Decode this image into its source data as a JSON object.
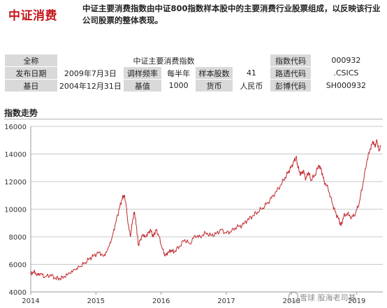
{
  "header": {
    "title": "中证消费",
    "description": "中证主要消费指数由中证800指数样本股中的主要消费行业股票组成，以反映该行业公司股票的整体表现。"
  },
  "info_table": {
    "row1": {
      "quanchen_label": "全称",
      "quanchen_value": "中证主要消费指数",
      "code_label": "指数代码",
      "code_value": "000932"
    },
    "row2": {
      "date_label": "发布日期",
      "date_value": "2009年7月3日",
      "freq_label": "调样频率",
      "freq_value": "每半年",
      "count_label": "样本股数",
      "count_value": "41",
      "reuters_label": "路透代码",
      "reuters_value": ".CSICS"
    },
    "row3": {
      "base_date_label": "基日",
      "base_date_value": "2004年12月31日",
      "base_value_label": "基值",
      "base_value_value": "1000",
      "currency_label": "货币",
      "currency_value": "人民币",
      "bloomberg_label": "彭博代码",
      "bloomberg_value": "SH000932"
    }
  },
  "section": {
    "title": "指数走势"
  },
  "watermark": {
    "text": "雪球 股海老司基"
  },
  "colors": {
    "line": "#c0282e",
    "brand": "#c4161c",
    "grid": "#c8c8c8",
    "label_bg": "#d9d9d9"
  },
  "chart_data": {
    "type": "line",
    "title": "",
    "xlabel": "",
    "ylabel": "",
    "x_ticks": [
      "2014",
      "2015",
      "2016",
      "2017",
      "2018",
      "2019"
    ],
    "y_ticks": [
      4000,
      6000,
      8000,
      10000,
      12000,
      14000,
      16000
    ],
    "ylim": [
      4000,
      16000
    ],
    "xlim": [
      2014.0,
      2019.4
    ],
    "grid": "horizontal",
    "series": [
      {
        "name": "",
        "color": "#c0282e",
        "points": [
          [
            2014.0,
            5300
          ],
          [
            2014.05,
            5500
          ],
          [
            2014.1,
            5250
          ],
          [
            2014.15,
            5350
          ],
          [
            2014.22,
            5100
          ],
          [
            2014.3,
            5250
          ],
          [
            2014.38,
            5000
          ],
          [
            2014.45,
            4950
          ],
          [
            2014.52,
            5100
          ],
          [
            2014.6,
            5350
          ],
          [
            2014.68,
            5600
          ],
          [
            2014.75,
            5800
          ],
          [
            2014.82,
            6050
          ],
          [
            2014.9,
            6400
          ],
          [
            2014.97,
            6650
          ],
          [
            2015.05,
            6900
          ],
          [
            2015.12,
            6600
          ],
          [
            2015.18,
            7100
          ],
          [
            2015.25,
            8000
          ],
          [
            2015.3,
            9000
          ],
          [
            2015.36,
            10100
          ],
          [
            2015.4,
            10700
          ],
          [
            2015.43,
            11000
          ],
          [
            2015.46,
            10400
          ],
          [
            2015.49,
            9000
          ],
          [
            2015.53,
            8000
          ],
          [
            2015.56,
            9100
          ],
          [
            2015.59,
            9800
          ],
          [
            2015.62,
            8800
          ],
          [
            2015.65,
            7400
          ],
          [
            2015.68,
            7800
          ],
          [
            2015.72,
            8200
          ],
          [
            2015.76,
            8000
          ],
          [
            2015.8,
            8300
          ],
          [
            2015.84,
            8500
          ],
          [
            2015.88,
            8000
          ],
          [
            2015.92,
            8500
          ],
          [
            2015.96,
            8100
          ],
          [
            2016.02,
            7100
          ],
          [
            2016.06,
            6600
          ],
          [
            2016.1,
            6800
          ],
          [
            2016.15,
            7000
          ],
          [
            2016.2,
            6900
          ],
          [
            2016.28,
            7300
          ],
          [
            2016.36,
            7800
          ],
          [
            2016.44,
            7500
          ],
          [
            2016.52,
            8100
          ],
          [
            2016.6,
            8000
          ],
          [
            2016.68,
            8300
          ],
          [
            2016.76,
            8100
          ],
          [
            2016.84,
            8200
          ],
          [
            2016.92,
            8500
          ],
          [
            2017.0,
            8250
          ],
          [
            2017.08,
            8400
          ],
          [
            2017.16,
            8700
          ],
          [
            2017.24,
            8800
          ],
          [
            2017.32,
            9200
          ],
          [
            2017.4,
            9500
          ],
          [
            2017.48,
            9800
          ],
          [
            2017.56,
            10100
          ],
          [
            2017.64,
            10500
          ],
          [
            2017.72,
            11000
          ],
          [
            2017.8,
            11500
          ],
          [
            2017.88,
            12100
          ],
          [
            2017.94,
            12600
          ],
          [
            2017.99,
            13000
          ],
          [
            2018.04,
            13500
          ],
          [
            2018.07,
            13800
          ],
          [
            2018.1,
            13000
          ],
          [
            2018.14,
            12500
          ],
          [
            2018.18,
            12800
          ],
          [
            2018.22,
            12200
          ],
          [
            2018.26,
            12700
          ],
          [
            2018.3,
            12100
          ],
          [
            2018.36,
            12500
          ],
          [
            2018.42,
            13200
          ],
          [
            2018.46,
            12800
          ],
          [
            2018.5,
            12000
          ],
          [
            2018.56,
            11500
          ],
          [
            2018.62,
            10500
          ],
          [
            2018.67,
            9800
          ],
          [
            2018.72,
            9300
          ],
          [
            2018.76,
            8800
          ],
          [
            2018.8,
            9500
          ],
          [
            2018.86,
            9700
          ],
          [
            2018.92,
            9400
          ],
          [
            2018.98,
            9700
          ],
          [
            2019.04,
            10500
          ],
          [
            2019.1,
            12000
          ],
          [
            2019.16,
            13600
          ],
          [
            2019.21,
            14400
          ],
          [
            2019.25,
            14900
          ],
          [
            2019.28,
            14500
          ],
          [
            2019.31,
            15000
          ],
          [
            2019.34,
            14200
          ],
          [
            2019.37,
            14600
          ]
        ]
      }
    ]
  }
}
